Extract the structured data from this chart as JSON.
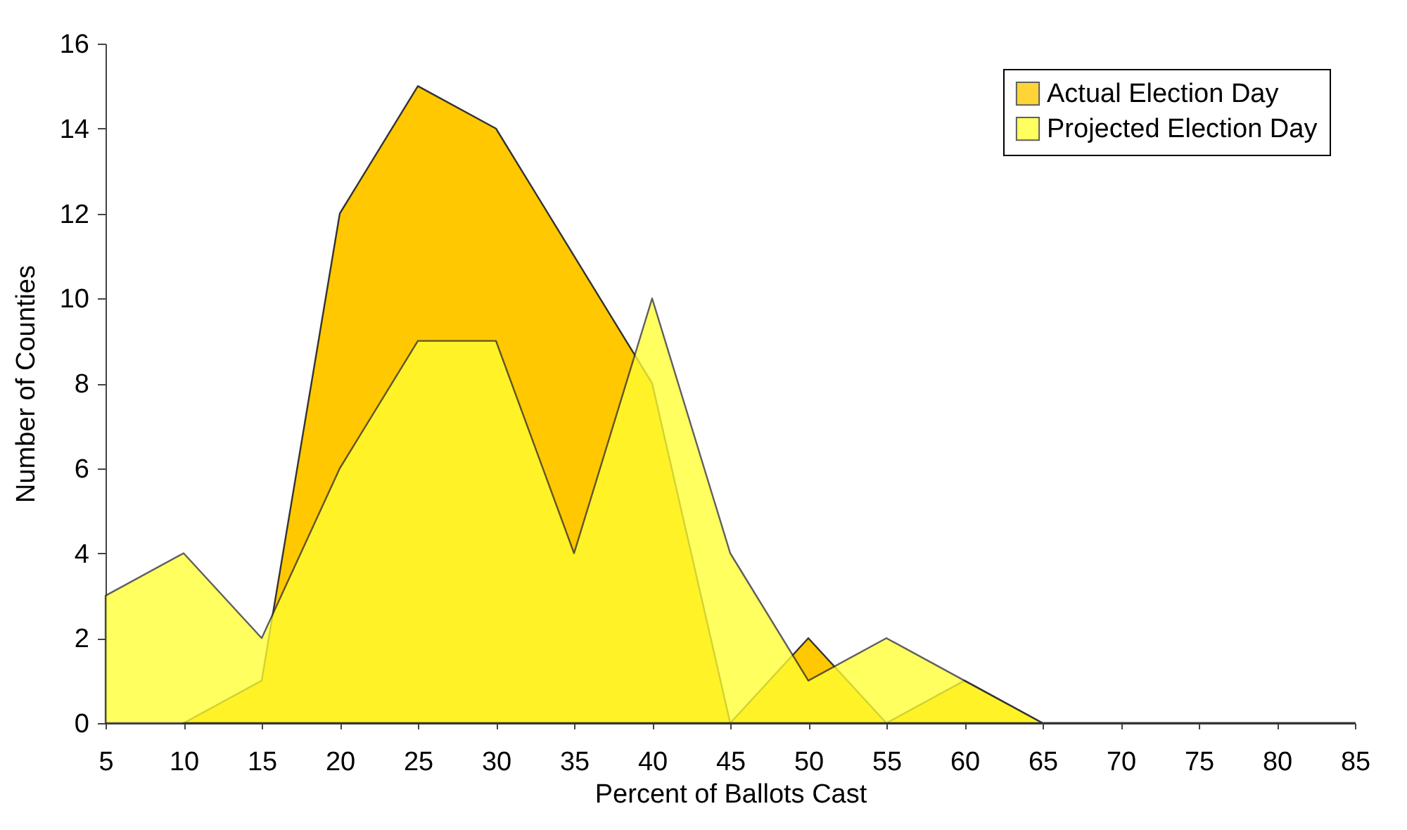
{
  "chart_data": {
    "type": "area",
    "xlabel": "Percent of Ballots Cast",
    "ylabel": "Number of Counties",
    "x": [
      5,
      10,
      15,
      20,
      25,
      30,
      35,
      40,
      45,
      50,
      55,
      60,
      65,
      70,
      75,
      80,
      85
    ],
    "series": [
      {
        "name": "Actual Election Day",
        "color": "#ffc800",
        "values": [
          null,
          0,
          1,
          12,
          15,
          14,
          11,
          8,
          0,
          2,
          0,
          1,
          0,
          0,
          0,
          0,
          0
        ]
      },
      {
        "name": "Projected Election Day",
        "color": "#ffff33",
        "values": [
          3,
          4,
          2,
          6,
          9,
          9,
          4,
          10,
          4,
          1,
          2,
          1,
          0,
          0,
          0,
          0,
          0
        ]
      }
    ],
    "xlim": [
      5,
      85
    ],
    "xticks": [
      5,
      10,
      15,
      20,
      25,
      30,
      35,
      40,
      45,
      50,
      55,
      60,
      65,
      70,
      75,
      80,
      85
    ],
    "ylim": [
      0,
      16
    ],
    "yticks": [
      0,
      2,
      4,
      6,
      8,
      10,
      12,
      14,
      16
    ],
    "grid": false,
    "legend": "top right"
  }
}
